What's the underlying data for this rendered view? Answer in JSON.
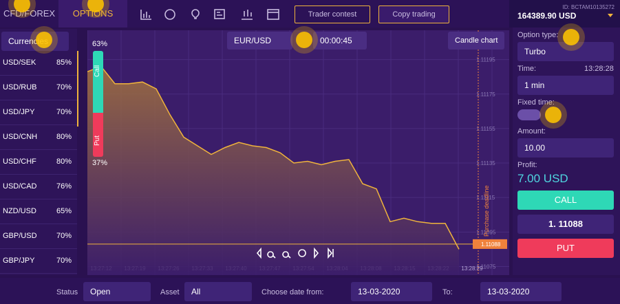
{
  "header": {
    "tabs": [
      "CFD/FOREX",
      "OPTIONS"
    ],
    "buttons": [
      "Trader contest",
      "Copy trading"
    ],
    "account_id": "ID: BCTAM10135272",
    "balance": "164389.90 USD"
  },
  "sidebar": {
    "filter": "Currencies",
    "assets": [
      [
        "USD/SEK",
        "85%"
      ],
      [
        "USD/RUB",
        "70%"
      ],
      [
        "USD/JPY",
        "70%"
      ],
      [
        "USD/CNH",
        "80%"
      ],
      [
        "USD/CHF",
        "80%"
      ],
      [
        "USD/CAD",
        "76%"
      ],
      [
        "NZD/USD",
        "65%"
      ],
      [
        "GBP/USD",
        "70%"
      ],
      [
        "GBP/JPY",
        "70%"
      ]
    ]
  },
  "toolbar": {
    "symbol": "EUR/USD",
    "timer": "00:00:45",
    "chart_button": "Candle chart"
  },
  "sentiment": {
    "call_label": "Call",
    "put_label": "Put",
    "call_pct": "63%",
    "put_pct": "37%"
  },
  "chart": {
    "type": "area",
    "values": [
      1.11188,
      1.11191,
      1.11181,
      1.11181,
      1.11182,
      1.11178,
      1.11163,
      1.1115,
      1.11145,
      1.1114,
      1.11144,
      1.11147,
      1.11145,
      1.11144,
      1.11141,
      1.11135,
      1.11136,
      1.11134,
      1.11136,
      1.11137,
      1.11123,
      1.1112,
      1.11101,
      1.11103,
      1.11101,
      1.111,
      1.111,
      1.11085
    ],
    "ylim": [
      1.1107,
      1.11212
    ],
    "yticks": [
      1.11195,
      1.11175,
      1.11155,
      1.11135,
      1.11115,
      1.11095,
      1.11075
    ],
    "xticks": [
      "13:27:12",
      "13:27:19",
      "13:27:26",
      "13:27:33",
      "13:27:40",
      "13:27:47",
      "13:27:54",
      "13:28:04",
      "13:28:08",
      "13:28:15",
      "13:28:22",
      "13:28:29"
    ],
    "current_price": 1.11088,
    "deadline_label": "Purchase deadline"
  },
  "panel": {
    "option_type_label": "Option type:",
    "option_type": "Turbo",
    "time_label": "Time:",
    "time_value": "13:28:28",
    "duration": "1 min",
    "fixed_time_label": "Fixed time:",
    "amount_label": "Amount:",
    "amount": "10.00",
    "profit_label": "Profit:",
    "profit": "7.00 USD",
    "call": "CALL",
    "price": "1. 11088",
    "put": "PUT"
  },
  "footer": {
    "status_label": "Status",
    "status": "Open",
    "asset_label": "Asset",
    "asset": "All",
    "from_label": "Choose date from:",
    "from": "13-03-2020",
    "to_label": "To:",
    "to": "13-03-2020"
  }
}
